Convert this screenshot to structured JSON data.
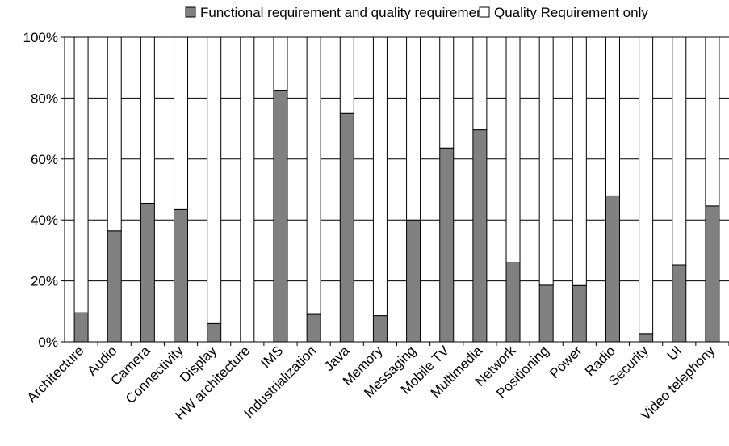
{
  "chart_data": {
    "type": "bar",
    "stacked": true,
    "percent": true,
    "categories": [
      "Architecture",
      "Audio",
      "Camera",
      "Connectivity",
      "Display",
      "HW architecture",
      "IMS",
      "Industrialization",
      "Java",
      "Memory",
      "Messaging",
      "Mobile TV",
      "Multimedia",
      "Network",
      "Positioning",
      "Power",
      "Radio",
      "Security",
      "UI",
      "Video telephony"
    ],
    "series": [
      {
        "name": "Functional requirement and quality requirement",
        "color": "#808080",
        "values": [
          9.5,
          36.4,
          45.5,
          43.4,
          6.0,
          0.0,
          82.4,
          9.0,
          75.0,
          8.6,
          40.0,
          63.6,
          69.6,
          26.0,
          18.6,
          18.5,
          47.9,
          2.7,
          25.2,
          44.6
        ]
      },
      {
        "name": "Quality Requirement only",
        "color": "#ffffff",
        "values": [
          90.5,
          63.6,
          54.5,
          56.6,
          94.0,
          100.0,
          17.6,
          91.0,
          25.0,
          91.4,
          60.0,
          36.4,
          30.4,
          74.0,
          81.4,
          81.5,
          52.1,
          97.3,
          74.8,
          55.4
        ]
      }
    ],
    "yticks": [
      "0%",
      "20%",
      "40%",
      "60%",
      "80%",
      "100%"
    ],
    "ylim": [
      0,
      100
    ],
    "grid": true,
    "legend_position": "top"
  }
}
